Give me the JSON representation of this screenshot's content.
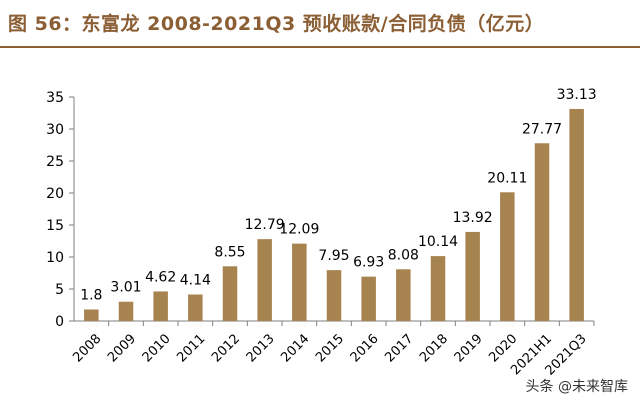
{
  "title": "图 56：东富龙 2008-2021Q3 预收账款/合同负债（亿元）",
  "watermark": "头条 @未来智库",
  "colors": {
    "bar": "#A7834F",
    "title": "#8B5E34",
    "axis": "#7F7F7F",
    "text": "#000000"
  },
  "chart_data": {
    "type": "bar",
    "categories": [
      "2008",
      "2009",
      "2010",
      "2011",
      "2012",
      "2013",
      "2014",
      "2015",
      "2016",
      "2017",
      "2018",
      "2019",
      "2020",
      "2021H1",
      "2021Q3"
    ],
    "values": [
      1.8,
      3.01,
      4.62,
      4.14,
      8.55,
      12.79,
      12.09,
      7.95,
      6.93,
      8.08,
      10.14,
      13.92,
      20.11,
      27.77,
      33.13
    ],
    "data_labels": [
      "1.8",
      "3.01",
      "4.62",
      "4.14",
      "8.55",
      "12.79",
      "12.09",
      "7.95",
      "6.93",
      "8.08",
      "10.14",
      "13.92",
      "20.11",
      "27.77",
      "33.13"
    ],
    "ylim": [
      0,
      35
    ],
    "yticks": [
      0,
      5,
      10,
      15,
      20,
      25,
      30,
      35
    ],
    "grid": false,
    "legend": "none"
  }
}
